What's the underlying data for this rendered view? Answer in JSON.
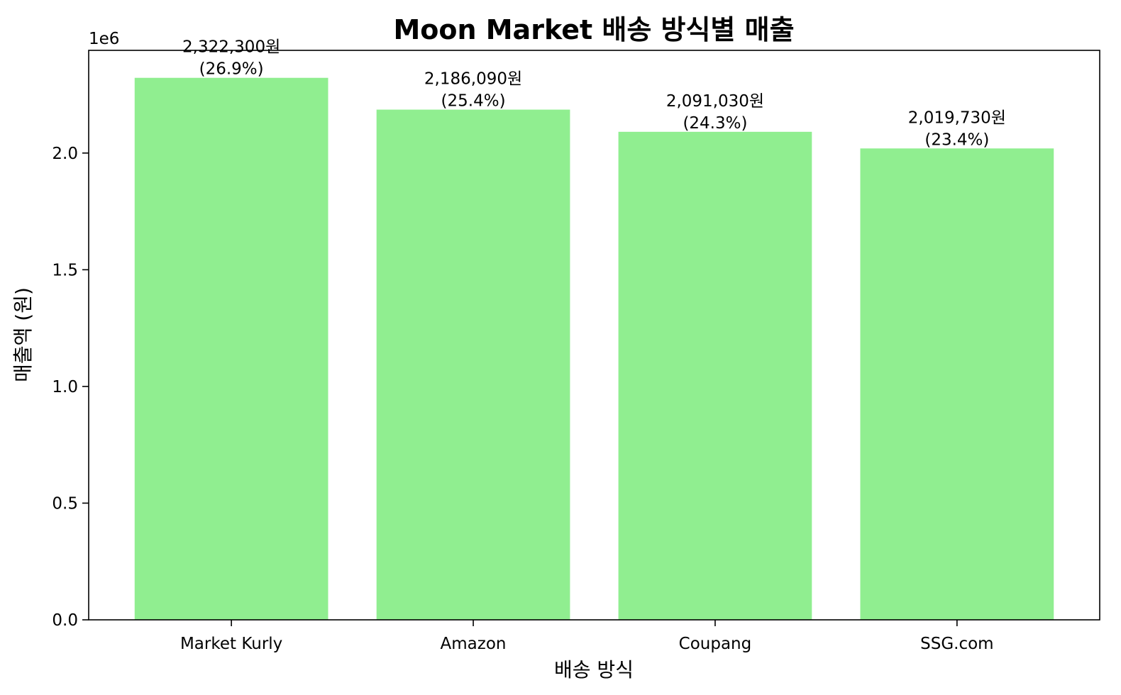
{
  "chart_data": {
    "type": "bar",
    "title": "Moon Market 배송 방식별 매출",
    "xlabel": "배송 방식",
    "ylabel": "매출액 (원)",
    "y_scale_label": "1e6",
    "categories": [
      "Market Kurly",
      "Amazon",
      "Coupang",
      "SSG.com"
    ],
    "values": [
      2322300,
      2186090,
      2091030,
      2019730
    ],
    "value_labels": [
      "2,322,300원",
      "2,186,090원",
      "2,091,030원",
      "2,019,730원"
    ],
    "percent_labels": [
      "(26.9%)",
      "(25.4%)",
      "(24.3%)",
      "(23.4%)"
    ],
    "y_ticks": [
      0,
      500000,
      1000000,
      1500000,
      2000000
    ],
    "y_tick_labels": [
      "0.0",
      "0.5",
      "1.0",
      "1.5",
      "2.0"
    ],
    "ylim": [
      0,
      2440000
    ],
    "bar_color": "#90ee90",
    "grid": false,
    "legend": "none"
  }
}
